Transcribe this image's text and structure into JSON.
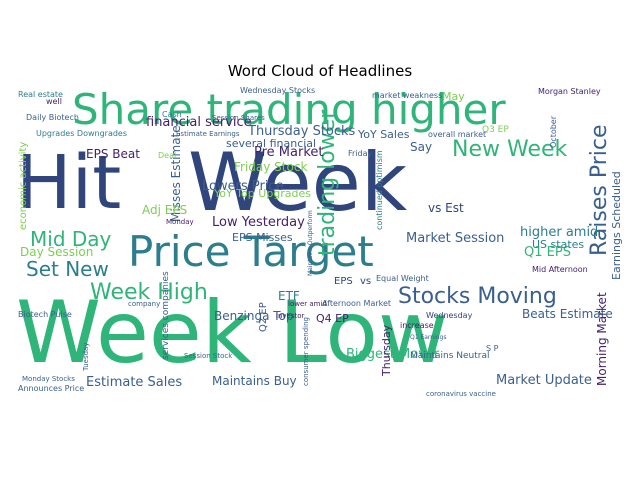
{
  "chart_data": {
    "type": "word_cloud",
    "title": "Word Cloud of Headlines",
    "palette": {
      "navy": "#31457d",
      "teal": "#2c7e8e",
      "green": "#2fb57a",
      "lime": "#7ccf51",
      "yellow": "#d9e21a",
      "purple": "#45216b",
      "blue": "#3a5f8e"
    },
    "words": [
      {
        "text": "Hit",
        "weight": 1.0,
        "color": "#31457d"
      },
      {
        "text": "Week",
        "weight": 1.0,
        "color": "#31457d"
      },
      {
        "text": "Week Low",
        "weight": 1.0,
        "color": "#2fb57a"
      },
      {
        "text": "Share trading higher",
        "weight": 0.5,
        "color": "#2fb57a"
      },
      {
        "text": "Price Target",
        "weight": 0.5,
        "color": "#2c7e8e"
      },
      {
        "text": "Week High",
        "weight": 0.3,
        "color": "#2fb57a"
      },
      {
        "text": "Stocks Moving",
        "weight": 0.3,
        "color": "#3a5f8e"
      },
      {
        "text": "New Week",
        "weight": 0.25,
        "color": "#2fb57a"
      },
      {
        "text": "Mid Day",
        "weight": 0.25,
        "color": "#2fb57a"
      },
      {
        "text": "Set New",
        "weight": 0.25,
        "color": "#2c7e8e"
      },
      {
        "text": "Raises Price",
        "weight": 0.25,
        "color": "#3a5f8e"
      },
      {
        "text": "trading lower",
        "weight": 0.25,
        "color": "#2fb57a"
      },
      {
        "text": "financial service",
        "weight": 0.15,
        "color": "#45216b"
      },
      {
        "text": "Thursday Stocks",
        "weight": 0.15,
        "color": "#3a5f8e"
      },
      {
        "text": "Lowers Price",
        "weight": 0.15,
        "color": "#3a5f8e"
      },
      {
        "text": "Low Yesterday",
        "weight": 0.15,
        "color": "#45216b"
      },
      {
        "text": "Pre Market",
        "weight": 0.15,
        "color": "#45216b"
      },
      {
        "text": "Market Session",
        "weight": 0.15,
        "color": "#3a5f8e"
      },
      {
        "text": "Q1 EPS",
        "weight": 0.15,
        "color": "#2fb57a"
      },
      {
        "text": "higher amid",
        "weight": 0.15,
        "color": "#2c7e8e"
      },
      {
        "text": "Biggest Mover",
        "weight": 0.15,
        "color": "#2fb57a"
      },
      {
        "text": "Market Update",
        "weight": 0.15,
        "color": "#3a5f8e"
      },
      {
        "text": "Estimate Sales",
        "weight": 0.15,
        "color": "#3a5f8e"
      },
      {
        "text": "Misses Estimate",
        "weight": 0.1,
        "color": "#3a5f8e"
      },
      {
        "text": "EPS Beat",
        "weight": 0.1,
        "color": "#45216b"
      },
      {
        "text": "EPS Misses",
        "weight": 0.1,
        "color": "#3a5f8e"
      },
      {
        "text": "vs Est",
        "weight": 0.1,
        "color": "#31457d"
      },
      {
        "text": "Say",
        "weight": 0.1,
        "color": "#3a5f8e"
      },
      {
        "text": "Adj EPS",
        "weight": 0.1,
        "color": "#7ccf51"
      },
      {
        "text": "Day Session",
        "weight": 0.1,
        "color": "#7ccf51"
      },
      {
        "text": "Benzinga Top",
        "weight": 0.1,
        "color": "#3a5f8e"
      },
      {
        "text": "ETF",
        "weight": 0.1,
        "color": "#2c7e8e"
      },
      {
        "text": "Maintains Buy",
        "weight": 0.1,
        "color": "#3a5f8e"
      },
      {
        "text": "Beats Estimate",
        "weight": 0.1,
        "color": "#3a5f8e"
      },
      {
        "text": "Morning Market",
        "weight": 0.1,
        "color": "#45216b"
      },
      {
        "text": "Friday Stock",
        "weight": 0.1,
        "color": "#7ccf51"
      },
      {
        "text": "YoY Top Upgrades",
        "weight": 0.1,
        "color": "#7ccf51"
      },
      {
        "text": "several financial",
        "weight": 0.08,
        "color": "#3a5f8e"
      },
      {
        "text": "YoY Sales",
        "weight": 0.08,
        "color": "#3a5f8e"
      },
      {
        "text": "Earnings Scheduled",
        "weight": 0.08,
        "color": "#3a5f8e"
      },
      {
        "text": "economic activity",
        "weight": 0.08,
        "color": "#7ccf51"
      },
      {
        "text": "US states",
        "weight": 0.08,
        "color": "#2c7e8e"
      },
      {
        "text": "Thursday",
        "weight": 0.08,
        "color": "#45216b"
      },
      {
        "text": "Q4 EP",
        "weight": 0.08,
        "color": "#45216b"
      },
      {
        "text": "Q2 EP",
        "weight": 0.06,
        "color": "#3a5f8e"
      },
      {
        "text": "EPS",
        "weight": 0.06,
        "color": "#31457d"
      },
      {
        "text": "vs",
        "weight": 0.06,
        "color": "#31457d"
      },
      {
        "text": "Maintains Neutral",
        "weight": 0.06,
        "color": "#3a5f8e"
      },
      {
        "text": "Real estate",
        "weight": 0.04,
        "color": "#2c7e8e"
      },
      {
        "text": "Daily Biotech",
        "weight": 0.04,
        "color": "#3a5f8e"
      },
      {
        "text": "Upgrades Downgrades",
        "weight": 0.04,
        "color": "#2c7e8e"
      },
      {
        "text": "Wednesday Stocks",
        "weight": 0.04,
        "color": "#3a5f8e"
      },
      {
        "text": "market weakness",
        "weight": 0.04,
        "color": "#3a5f8e"
      },
      {
        "text": "May",
        "weight": 0.06,
        "color": "#7ccf51"
      },
      {
        "text": "Morgan Stanley",
        "weight": 0.04,
        "color": "#45216b"
      },
      {
        "text": "Session Shares",
        "weight": 0.03,
        "color": "#3a5f8e"
      },
      {
        "text": "Estimate Earnings",
        "weight": 0.03,
        "color": "#3a5f8e"
      },
      {
        "text": "Cash",
        "weight": 0.04,
        "color": "#2c7e8e"
      },
      {
        "text": "Deal",
        "weight": 0.04,
        "color": "#7ccf51"
      },
      {
        "text": "overall market",
        "weight": 0.04,
        "color": "#3a5f8e"
      },
      {
        "text": "Q3 EP",
        "weight": 0.05,
        "color": "#7ccf51"
      },
      {
        "text": "Wednesday",
        "weight": 0.04,
        "color": "#31457d"
      },
      {
        "text": "Afternoon Market",
        "weight": 0.04,
        "color": "#3a5f8e"
      },
      {
        "text": "increase",
        "weight": 0.04,
        "color": "#45216b"
      },
      {
        "text": "continued optimism",
        "weight": 0.04,
        "color": "#2c7e8e"
      },
      {
        "text": "Mid Afternoon",
        "weight": 0.04,
        "color": "#45216b"
      },
      {
        "text": "Biotech Pulse",
        "weight": 0.04,
        "color": "#3a5f8e"
      },
      {
        "text": "Monday",
        "weight": 0.03,
        "color": "#45216b"
      },
      {
        "text": "services companies",
        "weight": 0.04,
        "color": "#3a5f8e"
      },
      {
        "text": "consumer spending",
        "weight": 0.03,
        "color": "#3a5f8e"
      },
      {
        "text": "Session Stock",
        "weight": 0.04,
        "color": "#3a5f8e"
      },
      {
        "text": "Announces Price",
        "weight": 0.04,
        "color": "#3a5f8e"
      },
      {
        "text": "Monday Stocks",
        "weight": 0.03,
        "color": "#3a5f8e"
      },
      {
        "text": "coronavirus vaccine",
        "weight": 0.04,
        "color": "#3a5f8e"
      },
      {
        "text": "Tuesday",
        "weight": 0.03,
        "color": "#3a5f8e"
      },
      {
        "text": "company",
        "weight": 0.03,
        "color": "#3a5f8e"
      },
      {
        "text": "lower amid",
        "weight": 0.04,
        "color": "#45216b"
      },
      {
        "text": "investor",
        "weight": 0.03,
        "color": "#45216b"
      },
      {
        "text": "Maintains Outperform",
        "weight": 0.03,
        "color": "#3a5f8e"
      },
      {
        "text": "Equal Weight",
        "weight": 0.03,
        "color": "#3a5f8e"
      },
      {
        "text": "S P",
        "weight": 0.03,
        "color": "#3a5f8e"
      },
      {
        "text": "Q1 Earnings",
        "weight": 0.02,
        "color": "#3a5f8e"
      },
      {
        "text": "October",
        "weight": 0.03,
        "color": "#3a5f8e"
      },
      {
        "text": "Friday",
        "weight": 0.03,
        "color": "#3a5f8e"
      },
      {
        "text": "well",
        "weight": 0.03,
        "color": "#45216b"
      }
    ]
  }
}
